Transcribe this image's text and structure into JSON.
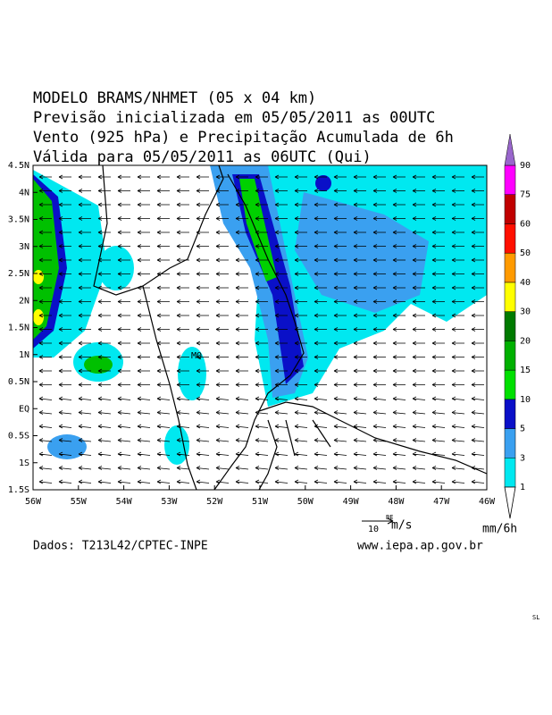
{
  "header": {
    "lines": [
      "MODELO BRAMS/NHMET (05 x 04 km)",
      "Previsão inicializada em 05/05/2011 as 00UTC",
      "Vento (925 hPa) e Precipitação Acumulada de 6h",
      "Válida para 05/05/2011 as 06UTC (Qui)"
    ]
  },
  "map": {
    "lon_labels": [
      "56W",
      "55W",
      "54W",
      "53W",
      "52W",
      "51W",
      "50W",
      "49W",
      "48W",
      "47W",
      "46W"
    ],
    "lat_labels": [
      "4.5N",
      "4N",
      "3.5N",
      "3N",
      "2.5N",
      "2N",
      "1.5N",
      "1N",
      "0.5N",
      "EQ",
      "0.5S",
      "1S",
      "1.5S"
    ],
    "place_label": "MQ"
  },
  "wind_reference": {
    "station": "BE",
    "speed": "10",
    "unit": "m/s"
  },
  "colorbar": {
    "levels": [
      1,
      3,
      5,
      10,
      15,
      20,
      30,
      40,
      50,
      60,
      75,
      90
    ],
    "colors": [
      "#00e8f0",
      "#3aa0f0",
      "#0a10c8",
      "#00e000",
      "#00b000",
      "#007a00",
      "#ffff00",
      "#ff9a00",
      "#ff1000",
      "#c00000",
      "#ff00ff"
    ],
    "top_color": "#9966cc",
    "unit": "mm/6h"
  },
  "footer": {
    "source": "Dados: T213L42/CPTEC-INPE",
    "website": "www.iepa.ap.gov.br",
    "corner": "SL"
  }
}
